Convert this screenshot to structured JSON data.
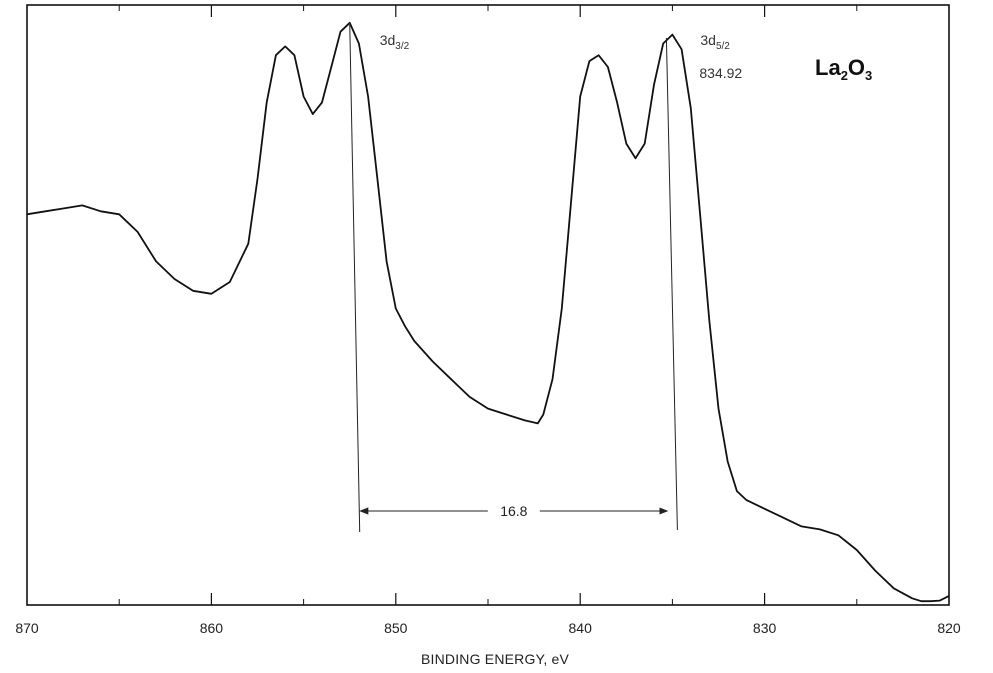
{
  "chart_data": {
    "type": "line",
    "title": "",
    "xlabel": "BINDING ENERGY, eV",
    "ylabel": "",
    "xlim": [
      870,
      820
    ],
    "x_reversed": true,
    "ylim": [
      0,
      100
    ],
    "grid": false,
    "x_ticks": [
      {
        "value": 870,
        "label": "870"
      },
      {
        "value": 860,
        "label": "860"
      },
      {
        "value": 850,
        "label": "850"
      },
      {
        "value": 840,
        "label": "840"
      },
      {
        "value": 830,
        "label": "830"
      },
      {
        "value": 820,
        "label": "820"
      }
    ],
    "minor_x_ticks": [
      865,
      855,
      845,
      835,
      825
    ],
    "series": [
      {
        "x": [
          870,
          869,
          868,
          867,
          866,
          865,
          864,
          863,
          862,
          861,
          860,
          859,
          858,
          857.5,
          857,
          856.5,
          856,
          855.5,
          855,
          854.5,
          854,
          853.5,
          853,
          852.5,
          852,
          851.5,
          851,
          850.5,
          850,
          849.5,
          849,
          848,
          847,
          846,
          845,
          844,
          843,
          842.3,
          842,
          841.5,
          841,
          840.5,
          840,
          839.5,
          839,
          838.5,
          838,
          837.5,
          837,
          836.5,
          836,
          835.5,
          835,
          834.5,
          834,
          833.5,
          833,
          832.5,
          832,
          831.5,
          831,
          830,
          829,
          828,
          827,
          826,
          825,
          824,
          823,
          822,
          821.5,
          821,
          820.5,
          820
        ],
        "y": [
          66,
          66.5,
          67,
          67.5,
          66.5,
          66,
          63,
          58,
          55,
          53,
          52.5,
          54.5,
          61,
          72,
          85,
          93,
          94.5,
          93,
          86,
          83,
          85,
          91,
          97,
          98.5,
          95,
          86,
          72,
          58,
          50,
          47,
          44.5,
          41,
          38,
          35,
          33,
          32,
          31,
          30.5,
          32,
          38,
          50,
          68,
          86,
          92,
          93,
          91,
          85,
          78,
          75.5,
          78,
          88,
          95,
          96.5,
          94,
          84,
          66,
          48,
          33,
          24,
          19,
          17.5,
          16,
          14.5,
          13,
          12.5,
          11.5,
          9,
          5.5,
          2.5,
          0.8,
          0.3,
          0.3,
          0.4,
          1.2
        ]
      }
    ],
    "annotations": {
      "peak_3d32": {
        "x": 852.5,
        "base": "3d",
        "sub": "3/2"
      },
      "peak_3d52": {
        "x": 835.0,
        "base": "3d",
        "sub": "5/2",
        "value": "834.92"
      },
      "spacing": {
        "from": 852.2,
        "to": 835.0,
        "label": "16.8"
      },
      "compound": {
        "base": "La",
        "sub1": "2",
        "mid": "O",
        "sub2": "3"
      }
    }
  }
}
